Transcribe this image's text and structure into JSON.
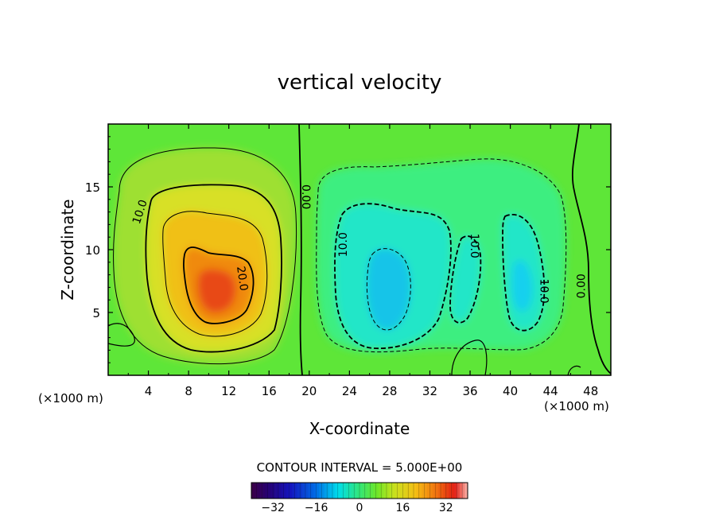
{
  "chart_data": {
    "type": "heatmap",
    "title": "vertical velocity",
    "xlabel": "X-coordinate",
    "ylabel": "Z-coordinate",
    "x_unit_left": "(×1000 m)",
    "x_unit_right": "(×1000 m)",
    "xlim": [
      0,
      50
    ],
    "ylim": [
      0,
      20
    ],
    "x_ticks": [
      4,
      8,
      12,
      16,
      20,
      24,
      28,
      32,
      36,
      40,
      44,
      48
    ],
    "y_ticks": [
      5,
      10,
      15
    ],
    "contour_interval_text": "CONTOUR INTERVAL = 5.000E+00",
    "contour_interval": 5,
    "colorbar": {
      "range": [
        -40,
        40
      ],
      "ticks": [
        -32,
        -16,
        0,
        16,
        32
      ]
    },
    "contour_labels": [
      {
        "text": "10.0",
        "x": 3.2,
        "z": 13.0,
        "angle": -72
      },
      {
        "text": "20.0",
        "x": 13.3,
        "z": 7.7,
        "angle": 82
      },
      {
        "text": "0.00",
        "x": 19.6,
        "z": 14.2,
        "angle": 90
      },
      {
        "text": "10.0",
        "x": 23.4,
        "z": 10.4,
        "angle": -90
      },
      {
        "text": "10.0",
        "x": 36.4,
        "z": 10.3,
        "angle": 90
      },
      {
        "text": "10.0",
        "x": 43.3,
        "z": 6.7,
        "angle": 90
      },
      {
        "text": "0.00",
        "x": 47.1,
        "z": 7.1,
        "angle": -90
      }
    ],
    "features": [
      {
        "name": "updraft",
        "x": 10.5,
        "z": 6.5,
        "peak": 28
      },
      {
        "name": "downdraft",
        "x": 28.5,
        "z": 6.5,
        "peak": -18
      },
      {
        "name": "downdraft",
        "x": 35.5,
        "z": 7.5,
        "peak": -12
      },
      {
        "name": "downdraft",
        "x": 41.5,
        "z": 7.5,
        "peak": -16
      }
    ]
  }
}
